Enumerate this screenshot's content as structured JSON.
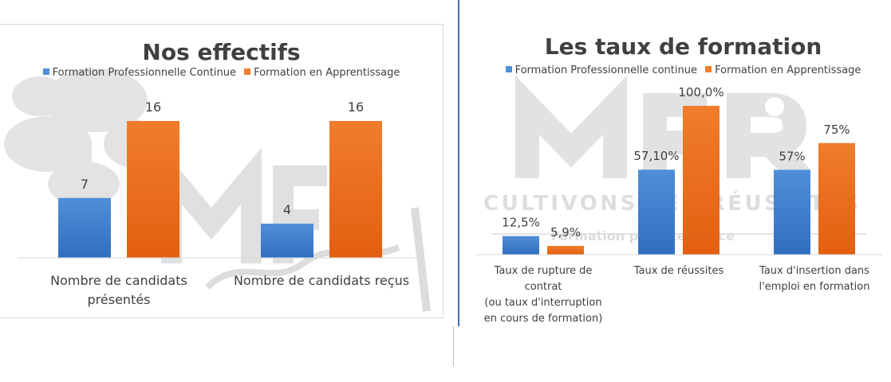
{
  "colors": {
    "continue": "#4f8fd8",
    "continue_dark": "#2f6fbf",
    "apprentissage": "#f07d2c",
    "apprentissage_dark": "#e35f10",
    "title": "#404040",
    "axis": "#d9d9d9"
  },
  "chart_data": [
    {
      "type": "bar",
      "title": "Nos effectifs",
      "categories": [
        "Nombre de candidats présentés",
        "Nombre de candidats reçus"
      ],
      "category_lines": [
        [
          "Nombre de candidats",
          "présentés"
        ],
        [
          "Nombre de candidats reçus"
        ]
      ],
      "series": [
        {
          "name": "Formation Professionnelle Continue",
          "values": [
            7,
            4
          ],
          "labels": [
            "7",
            "4"
          ]
        },
        {
          "name": "Formation en Apprentissage",
          "values": [
            16,
            16
          ],
          "labels": [
            "16",
            "16"
          ]
        }
      ],
      "ylim": [
        0,
        20
      ],
      "legend": "top",
      "grid": false
    },
    {
      "type": "bar",
      "title": "Les taux de formation",
      "categories": [
        "Taux de rupture de contrat (ou taux d'interruption en cours de formation)",
        "Taux de réussites",
        "Taux d'insertion dans l'emploi en formation"
      ],
      "category_lines": [
        [
          "Taux de rupture de",
          "contrat",
          "(ou taux d'interruption",
          "en cours de formation)"
        ],
        [
          "Taux de réussites"
        ],
        [
          "Taux d'insertion dans",
          "l'emploi en formation"
        ]
      ],
      "series": [
        {
          "name": "Formation Professionnelle continue",
          "values": [
            12.5,
            57.1,
            57
          ],
          "labels": [
            "12,5%",
            "57,10%",
            "57%"
          ]
        },
        {
          "name": "Formation en Apprentissage",
          "values": [
            5.9,
            100,
            75
          ],
          "labels": [
            "5,9%",
            "100,0%",
            "75%"
          ]
        }
      ],
      "ylim": [
        0,
        100
      ],
      "legend": "top",
      "grid": false
    }
  ]
}
